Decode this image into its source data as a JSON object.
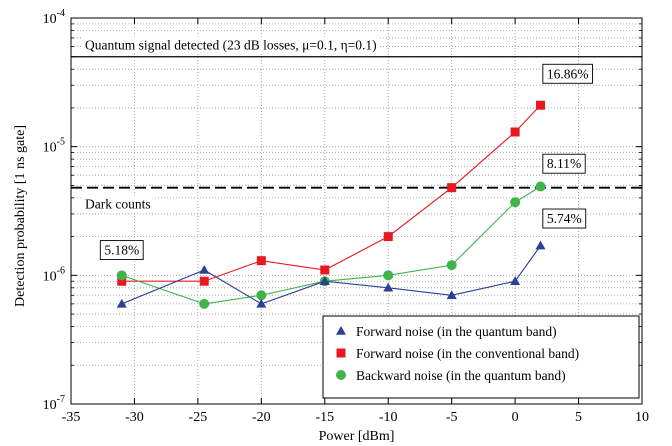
{
  "chart_data": {
    "type": "line",
    "xlabel": "Power [dBm]",
    "ylabel": "Detection probability [1 ns gate]",
    "xlim": [
      -35,
      10
    ],
    "ylim": [
      1e-07,
      0.0001
    ],
    "yscale": "log",
    "x_ticks": [
      {
        "v": -35,
        "label": "-35"
      },
      {
        "v": -30,
        "label": "-30"
      },
      {
        "v": -25,
        "label": "-25"
      },
      {
        "v": -20,
        "label": "-20"
      },
      {
        "v": -15,
        "label": "-15"
      },
      {
        "v": -10,
        "label": "-10"
      },
      {
        "v": -5,
        "label": "-5"
      },
      {
        "v": 0,
        "label": "0"
      },
      {
        "v": 5,
        "label": "5"
      },
      {
        "v": 10,
        "label": "10"
      }
    ],
    "y_ticks": [
      {
        "v": 1e-07,
        "base": "10",
        "exp": "-7"
      },
      {
        "v": 1e-06,
        "base": "10",
        "exp": "-6"
      },
      {
        "v": 1e-05,
        "base": "10",
        "exp": "-5"
      },
      {
        "v": 0.0001,
        "base": "10",
        "exp": "-4"
      }
    ],
    "grid": true,
    "legend_position": "bottom-right",
    "series": [
      {
        "name": "Forward noise (in the quantum band)",
        "color": "#2b3f99",
        "marker": "triangle",
        "points": [
          [
            -31,
            6e-07
          ],
          [
            -24.5,
            1.1e-06
          ],
          [
            -20,
            6e-07
          ],
          [
            -15,
            9e-07
          ],
          [
            -10,
            8e-07
          ],
          [
            -5,
            7e-07
          ],
          [
            0,
            9e-07
          ],
          [
            2,
            1.7e-06
          ]
        ]
      },
      {
        "name": "Forward noise (in the conventional band)",
        "color": "#e8191e",
        "marker": "square",
        "points": [
          [
            -31,
            9e-07
          ],
          [
            -24.5,
            9e-07
          ],
          [
            -20,
            1.3e-06
          ],
          [
            -15,
            1.1e-06
          ],
          [
            -10,
            2e-06
          ],
          [
            -5,
            4.8e-06
          ],
          [
            0,
            1.3e-05
          ],
          [
            2,
            2.1e-05
          ]
        ]
      },
      {
        "name": "Backward noise (in the quantum band)",
        "color": "#3fb44a",
        "marker": "circle",
        "points": [
          [
            -31,
            1e-06
          ],
          [
            -24.5,
            6e-07
          ],
          [
            -20,
            7e-07
          ],
          [
            -15,
            9e-07
          ],
          [
            -10,
            1e-06
          ],
          [
            -5,
            1.2e-06
          ],
          [
            0,
            3.7e-06
          ],
          [
            2,
            4.9e-06
          ]
        ]
      }
    ],
    "reference_lines": [
      {
        "y": 5e-05,
        "style": "solid",
        "label": "Quantum signal detected (23 dB losses, μ=0.1, η=0.1)"
      },
      {
        "y": 4.8e-06,
        "style": "dashed",
        "label": "Dark counts"
      }
    ],
    "data_labels": [
      {
        "text": "16.86%",
        "x": 2.5,
        "y": 3.4e-05
      },
      {
        "text": "8.11%",
        "x": 2.5,
        "y": 6.8e-06
      },
      {
        "text": "5.74%",
        "x": 2.5,
        "y": 2.55e-06
      },
      {
        "text": "5.18%",
        "x": -31,
        "y": 1.45e-06
      }
    ]
  }
}
